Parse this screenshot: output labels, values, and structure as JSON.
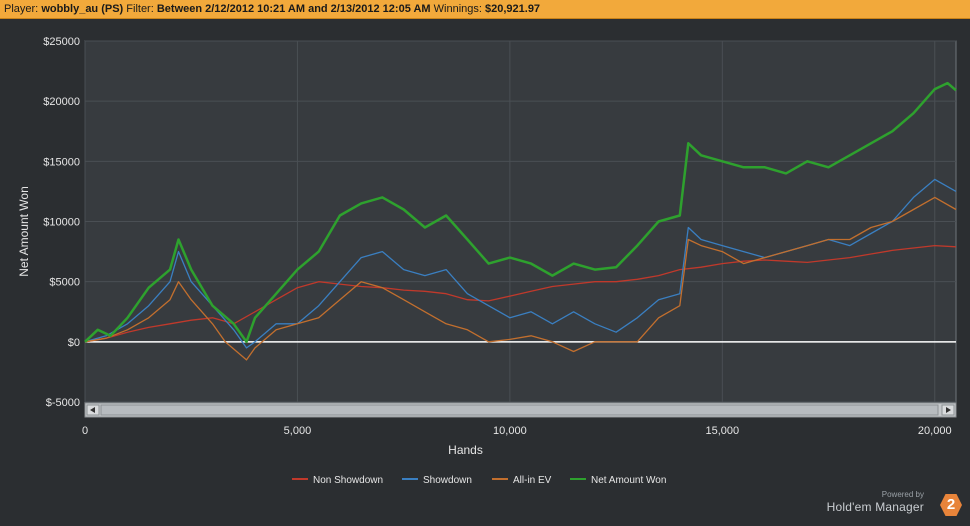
{
  "header": {
    "player_label": "Player:",
    "player_value": "wobbly_au (PS)",
    "filter_label": "Filter:",
    "filter_value": "Between 2/12/2012 10:21 AM and 2/13/2012 12:05 AM",
    "winnings_label": "Winnings:",
    "winnings_value": "$20,921.97"
  },
  "brand": {
    "powered": "Powered by",
    "name": "Hold'em Manager",
    "logo": "2"
  },
  "chart_data": {
    "type": "line",
    "xlabel": "Hands",
    "ylabel": "Net Amount Won",
    "xlim": [
      0,
      20500
    ],
    "ylim": [
      -5000,
      25000
    ],
    "xticks": [
      0,
      5000,
      10000,
      15000,
      20000
    ],
    "xtick_labels": [
      "0",
      "5,000",
      "10,000",
      "15,000",
      "20,000"
    ],
    "yticks": [
      -5000,
      0,
      5000,
      10000,
      15000,
      20000,
      25000
    ],
    "ytick_labels": [
      "$-5000",
      "$0",
      "$5000",
      "$10000",
      "$15000",
      "$20000",
      "$25000"
    ],
    "grid": true,
    "legend_position": "bottom",
    "series": [
      {
        "name": "Non Showdown",
        "color": "#c0392b",
        "x": [
          0,
          500,
          1000,
          1500,
          2000,
          2500,
          3000,
          3500,
          4000,
          4500,
          5000,
          5500,
          6000,
          6500,
          7000,
          7500,
          8000,
          8500,
          9000,
          9500,
          10000,
          10500,
          11000,
          11500,
          12000,
          12500,
          13000,
          13500,
          14000,
          14500,
          15000,
          15500,
          16000,
          16500,
          17000,
          17500,
          18000,
          18500,
          19000,
          19500,
          20000,
          20500
        ],
        "y": [
          0,
          300,
          800,
          1200,
          1500,
          1800,
          2000,
          1500,
          2500,
          3500,
          4500,
          5000,
          4800,
          4600,
          4500,
          4300,
          4200,
          4000,
          3500,
          3400,
          3800,
          4200,
          4600,
          4800,
          5000,
          5000,
          5200,
          5500,
          6000,
          6200,
          6500,
          6700,
          6800,
          6700,
          6600,
          6800,
          7000,
          7300,
          7600,
          7800,
          8000,
          7900
        ]
      },
      {
        "name": "Showdown",
        "color": "#3a7fc1",
        "x": [
          0,
          500,
          1000,
          1500,
          2000,
          2200,
          2500,
          3000,
          3500,
          3800,
          4000,
          4500,
          5000,
          5500,
          6000,
          6500,
          7000,
          7500,
          8000,
          8500,
          9000,
          9500,
          10000,
          10500,
          11000,
          11500,
          12000,
          12500,
          13000,
          13500,
          14000,
          14200,
          14500,
          15000,
          15500,
          16000,
          16500,
          17000,
          17500,
          18000,
          18500,
          19000,
          19500,
          20000,
          20500
        ],
        "y": [
          0,
          500,
          1500,
          3000,
          5000,
          7500,
          5000,
          3000,
          1000,
          -500,
          0,
          1500,
          1500,
          3000,
          5000,
          7000,
          7500,
          6000,
          5500,
          6000,
          4000,
          3000,
          2000,
          2500,
          1500,
          2500,
          1500,
          800,
          2000,
          3500,
          4000,
          9500,
          8500,
          8000,
          7500,
          7000,
          7500,
          8000,
          8500,
          8000,
          9000,
          10000,
          12000,
          13500,
          12500
        ]
      },
      {
        "name": "All-in EV",
        "color": "#c26f2e",
        "x": [
          0,
          500,
          1000,
          1500,
          2000,
          2200,
          2500,
          3000,
          3300,
          3800,
          4000,
          4500,
          5000,
          5500,
          6000,
          6500,
          7000,
          7500,
          8000,
          8500,
          9000,
          9500,
          10000,
          10500,
          11000,
          11500,
          12000,
          12500,
          13000,
          13500,
          14000,
          14200,
          14500,
          15000,
          15500,
          16000,
          16500,
          17000,
          17500,
          18000,
          18500,
          19000,
          19500,
          20000,
          20500
        ],
        "y": [
          0,
          300,
          1000,
          2000,
          3500,
          5000,
          3500,
          1500,
          0,
          -1500,
          -500,
          1000,
          1500,
          2000,
          3500,
          5000,
          4500,
          3500,
          2500,
          1500,
          1000,
          0,
          200,
          500,
          0,
          -800,
          0,
          0,
          0,
          2000,
          3000,
          8500,
          8000,
          7500,
          6500,
          7000,
          7500,
          8000,
          8500,
          8500,
          9500,
          10000,
          11000,
          12000,
          11000
        ]
      },
      {
        "name": "Net Amount Won",
        "color": "#2ea12e",
        "x": [
          0,
          300,
          600,
          1000,
          1500,
          2000,
          2200,
          2500,
          3000,
          3500,
          3800,
          4000,
          4500,
          5000,
          5500,
          6000,
          6500,
          7000,
          7500,
          8000,
          8500,
          9000,
          9500,
          10000,
          10500,
          11000,
          11500,
          12000,
          12500,
          13000,
          13500,
          14000,
          14200,
          14500,
          15000,
          15500,
          16000,
          16500,
          17000,
          17500,
          18000,
          18500,
          19000,
          19500,
          20000,
          20300,
          20500
        ],
        "y": [
          0,
          1000,
          500,
          2000,
          4500,
          6000,
          8500,
          6000,
          3000,
          1500,
          0,
          2000,
          4000,
          6000,
          7500,
          10500,
          11500,
          12000,
          11000,
          9500,
          10500,
          8500,
          6500,
          7000,
          6500,
          5500,
          6500,
          6000,
          6200,
          8000,
          10000,
          10500,
          16500,
          15500,
          15000,
          14500,
          14500,
          14000,
          15000,
          14500,
          15500,
          16500,
          17500,
          19000,
          21000,
          21500,
          20900
        ]
      }
    ]
  }
}
